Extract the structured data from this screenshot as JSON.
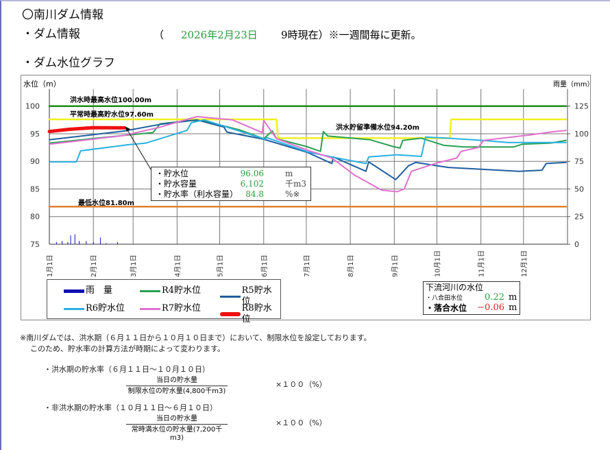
{
  "header": {
    "title": "〇南川ダム情報",
    "dam_info_label": "・ダム情報",
    "open_paren": "（",
    "date": "2026年2月23日",
    "time_note": "9時現在）※一週間毎に更新。",
    "graph_label": "・ダム水位グラフ"
  },
  "colors": {
    "date": "#2a9a3a",
    "positive": "#2a9a3a",
    "negative": "#e02020"
  },
  "chart_data": {
    "type": "line",
    "ylabel": "水位（m）",
    "y2label": "雨量（mm）",
    "ylim": [
      75,
      100
    ],
    "yticks": [
      75,
      80,
      85,
      90,
      95,
      100
    ],
    "y2lim": [
      0,
      125
    ],
    "y2ticks": [
      0,
      25,
      50,
      75,
      100,
      125
    ],
    "xlabels": [
      "1月1日",
      "2月1日",
      "3月1日",
      "4月1日",
      "5月1日",
      "6月1日",
      "7月1日",
      "8月1日",
      "9月1日",
      "10月1日",
      "11月1日",
      "12月1日"
    ],
    "grid": true,
    "reference_lines": [
      {
        "label": "洪水時最高水位100.00m",
        "color": "#1a8a1a",
        "points": [
          [
            "01-01",
            100
          ],
          [
            "12-31",
            100
          ]
        ]
      },
      {
        "label": "平常時最高貯水位97.60m",
        "color": "#f0f020",
        "points": [
          [
            "01-01",
            97.6
          ],
          [
            "06-10",
            97.6
          ],
          [
            "06-11",
            94.2
          ],
          [
            "10-10",
            94.2
          ],
          [
            "10-11",
            97.6
          ],
          [
            "12-31",
            97.6
          ]
        ]
      },
      {
        "label": "洪水貯留準備水位94.20m",
        "color": "#f0f020",
        "points": []
      },
      {
        "label": "最低水位81.80m",
        "color": "#e08030",
        "points": [
          [
            "01-01",
            81.8
          ],
          [
            "12-31",
            81.8
          ]
        ]
      }
    ],
    "rain": {
      "name": "雨　量",
      "color": "#1010b0",
      "values": [
        [
          "01-06",
          2
        ],
        [
          "01-10",
          3
        ],
        [
          "01-14",
          2
        ],
        [
          "01-16",
          8
        ],
        [
          "01-19",
          9
        ],
        [
          "01-22",
          3
        ],
        [
          "01-27",
          3
        ],
        [
          "02-01",
          2
        ],
        [
          "02-06",
          6
        ],
        [
          "02-10",
          1
        ],
        [
          "02-18",
          2
        ]
      ]
    },
    "series": [
      {
        "name": "R4貯水位",
        "color": "#2aa052",
        "width": 2,
        "points": [
          [
            "01-01",
            93.3
          ],
          [
            "02-15",
            94.5
          ],
          [
            "03-15",
            95.2
          ],
          [
            "03-20",
            96.8
          ],
          [
            "04-10",
            97.4
          ],
          [
            "04-20",
            97.3
          ],
          [
            "05-15",
            95.7
          ],
          [
            "06-01",
            94.1
          ],
          [
            "06-07",
            95.5
          ],
          [
            "06-10",
            94.1
          ],
          [
            "07-01",
            92.7
          ],
          [
            "07-11",
            91.8
          ],
          [
            "07-13",
            95.4
          ],
          [
            "07-16",
            94.6
          ],
          [
            "08-15",
            93.9
          ],
          [
            "08-31",
            92.7
          ],
          [
            "09-05",
            92.4
          ],
          [
            "09-07",
            93.8
          ],
          [
            "09-20",
            94.2
          ],
          [
            "10-06",
            92.9
          ],
          [
            "10-20",
            92.6
          ],
          [
            "11-24",
            92.6
          ],
          [
            "11-30",
            93.1
          ],
          [
            "12-20",
            93.3
          ],
          [
            "12-31",
            93.8
          ]
        ]
      },
      {
        "name": "R5貯水位",
        "color": "#1f5fa0",
        "width": 2,
        "points": [
          [
            "01-01",
            93.9
          ],
          [
            "02-23",
            95.5
          ],
          [
            "03-20",
            96.7
          ],
          [
            "04-15",
            97.5
          ],
          [
            "05-04",
            96.2
          ],
          [
            "05-06",
            95.3
          ],
          [
            "06-01",
            94.0
          ],
          [
            "07-02",
            91.6
          ],
          [
            "07-19",
            89.6
          ],
          [
            "07-20",
            90.8
          ],
          [
            "08-12",
            88.2
          ],
          [
            "08-14",
            89.9
          ],
          [
            "09-02",
            86.7
          ],
          [
            "09-11",
            89.2
          ],
          [
            "09-16",
            89.8
          ],
          [
            "10-09",
            88.9
          ],
          [
            "11-28",
            88.2
          ],
          [
            "12-14",
            88.4
          ],
          [
            "12-17",
            89.6
          ],
          [
            "12-31",
            89.8
          ]
        ]
      },
      {
        "name": "R6貯水位",
        "color": "#2ab0e0",
        "width": 2,
        "points": [
          [
            "01-01",
            89.9
          ],
          [
            "01-20",
            89.9
          ],
          [
            "01-23",
            91.9
          ],
          [
            "02-25",
            93.0
          ],
          [
            "03-10",
            93.3
          ],
          [
            "04-08",
            95.6
          ],
          [
            "04-11",
            97.0
          ],
          [
            "04-20",
            97.5
          ],
          [
            "06-02",
            94.0
          ],
          [
            "06-03",
            94.3
          ],
          [
            "07-02",
            91.7
          ],
          [
            "07-19",
            90.8
          ],
          [
            "08-12",
            89.6
          ],
          [
            "08-14",
            90.8
          ],
          [
            "09-03",
            91.2
          ],
          [
            "09-20",
            90.9
          ],
          [
            "09-23",
            94.4
          ],
          [
            "10-08",
            94.2
          ],
          [
            "11-02",
            93.8
          ],
          [
            "11-20",
            93.4
          ],
          [
            "12-31",
            93.4
          ]
        ]
      },
      {
        "name": "R7貯水位",
        "color": "#e070d0",
        "width": 2,
        "points": [
          [
            "01-01",
            93.1
          ],
          [
            "02-23",
            94.7
          ],
          [
            "03-20",
            96.2
          ],
          [
            "04-08",
            97.6
          ],
          [
            "04-15",
            98.1
          ],
          [
            "05-10",
            97.5
          ],
          [
            "05-31",
            95.2
          ],
          [
            "06-01",
            97.4
          ],
          [
            "06-10",
            94.1
          ],
          [
            "07-01",
            92.1
          ],
          [
            "07-19",
            90.6
          ],
          [
            "08-04",
            87.5
          ],
          [
            "08-23",
            84.8
          ],
          [
            "09-03",
            84.5
          ],
          [
            "09-08",
            85.0
          ],
          [
            "09-13",
            88.2
          ],
          [
            "10-01",
            89.7
          ],
          [
            "10-15",
            90.6
          ],
          [
            "10-18",
            91.8
          ],
          [
            "10-30",
            92.5
          ],
          [
            "11-03",
            93.8
          ],
          [
            "12-06",
            94.8
          ],
          [
            "12-20",
            95.3
          ],
          [
            "12-31",
            95.6
          ]
        ]
      },
      {
        "name": "R8貯水位",
        "color": "#f01010",
        "width": 5,
        "points": [
          [
            "01-01",
            95.4
          ],
          [
            "01-15",
            95.8
          ],
          [
            "02-01",
            96.1
          ],
          [
            "02-23",
            96.06
          ]
        ]
      }
    ]
  },
  "current": {
    "rows": [
      {
        "label": "・貯水位",
        "value": "96.06",
        "unit": "m"
      },
      {
        "label": "・貯水容量",
        "value": "6,102",
        "unit": "千m3"
      },
      {
        "label": "・貯水率（利水容量）",
        "value": "84.8",
        "unit": "%※"
      }
    ]
  },
  "river": {
    "title": "下流河川の水位",
    "rows": [
      {
        "label": "・八合田水位",
        "value": "0.22",
        "unit": "m"
      },
      {
        "label": "・落合水位",
        "value": "−0.06",
        "unit": "m"
      }
    ]
  },
  "notes": {
    "line1": "※南川ダムでは、洪水期（６月１１日から１０月１０日まで）において、制限水位を設定しております。",
    "line2": "このため、貯水率の計算方法が時期によって変わります。",
    "flood_title": "・洪水期の貯水率（６月１１日～１０月１０日）",
    "flood_num": "当日の貯水量",
    "flood_den": "制限水位の貯水量(4,800千m3)",
    "flood_mult": "×１００（%）",
    "nonflood_title": "・非洪水期の貯水率（１０月１１日～６月１０日）",
    "nonflood_num": "当日の貯水量",
    "nonflood_den": "常時満水位の貯水量(7,200千m3)",
    "nonflood_mult": "×１００（%）"
  }
}
